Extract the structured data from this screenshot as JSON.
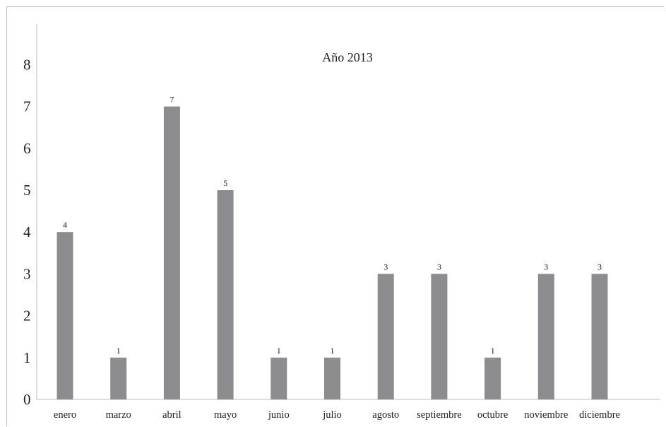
{
  "chart_data": {
    "type": "bar",
    "title": "Año 2013",
    "categories": [
      "enero",
      "marzo",
      "abril",
      "mayo",
      "junio",
      "julio",
      "agosto",
      "septiembre",
      "octubre",
      "noviembre",
      "diciembre"
    ],
    "values": [
      4,
      1,
      7,
      5,
      1,
      1,
      3,
      3,
      1,
      3,
      3
    ],
    "data_labels": [
      "4",
      "1",
      "7",
      "5",
      "1",
      "1",
      "3",
      "3",
      "1",
      "3",
      "3"
    ],
    "yticks": [
      "0",
      "1",
      "2",
      "3",
      "4",
      "5",
      "6",
      "7",
      "8"
    ],
    "ylim": [
      0,
      8
    ],
    "xlabel": "",
    "ylabel": "",
    "grid": false,
    "legend": "none",
    "bar_color": "#8c8c8e"
  }
}
